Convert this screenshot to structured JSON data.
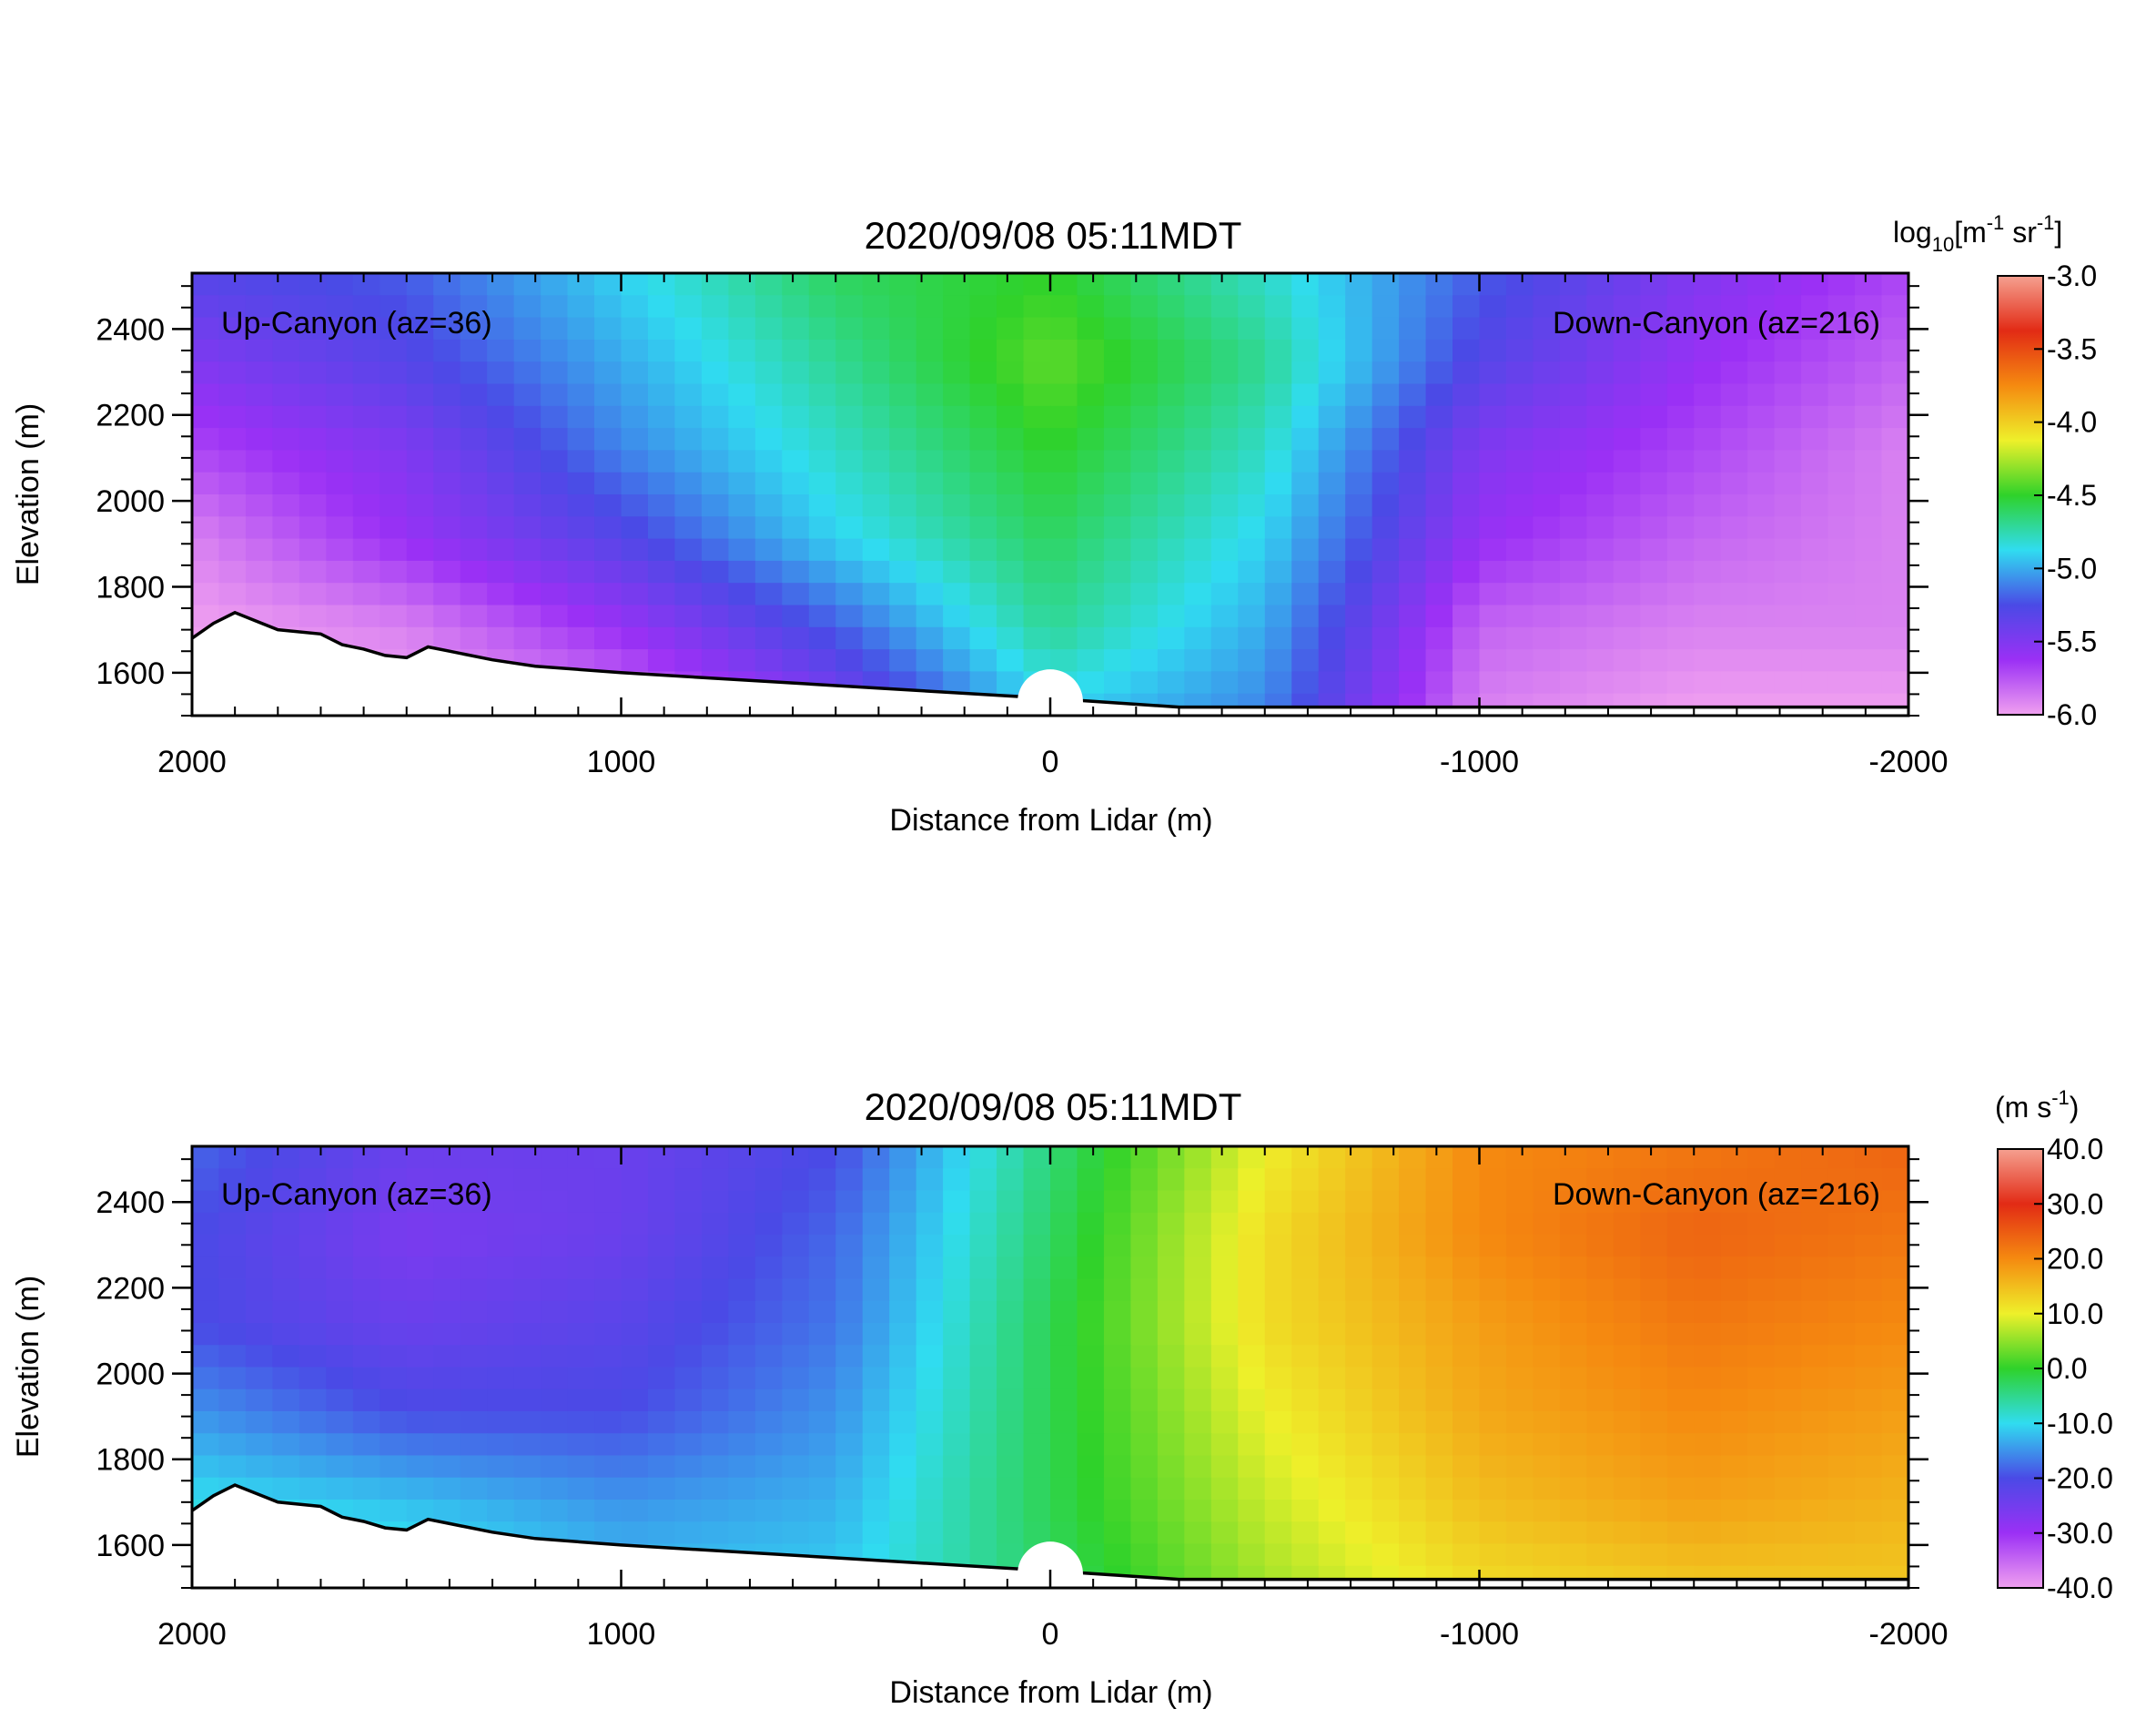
{
  "chart_data": [
    {
      "type": "heatmap",
      "title": "2020/09/08 05:11MDT",
      "xlabel": "Distance from Lidar (m)",
      "ylabel": "Elevation (m)",
      "x_ticks": [
        "2000",
        "1000",
        "0",
        "-1000",
        "-2000"
      ],
      "x_tick_values": [
        2000,
        1000,
        0,
        -1000,
        -2000
      ],
      "y_ticks": [
        "1600",
        "1800",
        "2000",
        "2200",
        "2400"
      ],
      "y_tick_values": [
        1600,
        1800,
        2000,
        2200,
        2400
      ],
      "xlim": [
        2000,
        -2000
      ],
      "ylim": [
        1500,
        2530
      ],
      "annotations": [
        "Up-Canyon (az=36)",
        "Down-Canyon (az=216)"
      ],
      "colorbar": {
        "units": "log10[m-1 sr-1]",
        "min": -6.0,
        "max": -3.0,
        "tick_labels": [
          "-3.0",
          "-3.5",
          "-4.0",
          "-4.5",
          "-5.0",
          "-5.5",
          "-6.0"
        ],
        "colors": [
          "#f0a0f0",
          "#9b30f5",
          "#4a4ae6",
          "#30dcf0",
          "#2fd22a",
          "#eef02a",
          "#f58a10",
          "#e22b15",
          "#f5a090"
        ]
      },
      "field": {
        "column_x": [
          2000,
          1500,
          1000,
          500,
          0,
          -500,
          -1000,
          -1500,
          -2000
        ],
        "row_elevation": [
          2500,
          2300,
          2100,
          1900,
          1700,
          1550
        ],
        "values": [
          [
            -5.3,
            -5.2,
            -4.9,
            -4.6,
            -4.5,
            -4.8,
            -5.2,
            -5.5,
            -5.7
          ],
          [
            -5.5,
            -5.3,
            -5.0,
            -4.7,
            -4.4,
            -4.7,
            -5.3,
            -5.6,
            -5.8
          ],
          [
            -5.7,
            -5.5,
            -5.1,
            -4.8,
            -4.5,
            -4.8,
            -5.5,
            -5.7,
            -5.9
          ],
          [
            -5.9,
            -5.6,
            -5.3,
            -4.9,
            -4.6,
            -4.9,
            -5.6,
            -5.8,
            -5.9
          ],
          [
            -6.0,
            -5.9,
            -5.6,
            -5.2,
            -4.7,
            -5.0,
            -5.8,
            -5.9,
            -5.9
          ],
          [
            -6.0,
            -6.0,
            -5.9,
            -5.5,
            -4.9,
            -5.1,
            -5.9,
            -6.0,
            -6.0
          ]
        ]
      },
      "terrain": {
        "x": [
          2000,
          1950,
          1900,
          1850,
          1800,
          1700,
          1650,
          1600,
          1550,
          1500,
          1450,
          1400,
          1300,
          1200,
          1000,
          500,
          0,
          -300,
          -2000
        ],
        "elevation": [
          1680,
          1715,
          1740,
          1720,
          1700,
          1690,
          1665,
          1655,
          1640,
          1635,
          1660,
          1650,
          1630,
          1615,
          1600,
          1570,
          1540,
          1520,
          1520
        ]
      }
    },
    {
      "type": "heatmap",
      "title": "2020/09/08 05:11MDT",
      "xlabel": "Distance from Lidar (m)",
      "ylabel": "Elevation (m)",
      "x_ticks": [
        "2000",
        "1000",
        "0",
        "-1000",
        "-2000"
      ],
      "x_tick_values": [
        2000,
        1000,
        0,
        -1000,
        -2000
      ],
      "y_ticks": [
        "1600",
        "1800",
        "2000",
        "2200",
        "2400"
      ],
      "y_tick_values": [
        1600,
        1800,
        2000,
        2200,
        2400
      ],
      "xlim": [
        2000,
        -2000
      ],
      "ylim": [
        1500,
        2530
      ],
      "annotations": [
        "Up-Canyon (az=36)",
        "Down-Canyon (az=216)"
      ],
      "colorbar": {
        "units": "m s-1",
        "min": -40.0,
        "max": 40.0,
        "tick_labels": [
          "40.0",
          "30.0",
          "20.0",
          "10.0",
          "0.0",
          "-10.0",
          "-20.0",
          "-30.0",
          "-40.0"
        ],
        "colors": [
          "#f0a0f0",
          "#9b30f5",
          "#4a4ae6",
          "#30dcf0",
          "#2fd22a",
          "#eef02a",
          "#f58a10",
          "#e22b15",
          "#f5a090"
        ]
      },
      "field": {
        "column_x": [
          2000,
          1500,
          1000,
          500,
          0,
          -500,
          -1000,
          -1500,
          -2000
        ],
        "row_elevation": [
          2500,
          2300,
          2100,
          1900,
          1700,
          1550
        ],
        "values": [
          [
            -18,
            -24,
            -24,
            -20,
            -4,
            10,
            20,
            22,
            24
          ],
          [
            -20,
            -26,
            -24,
            -18,
            -3,
            12,
            20,
            24,
            22
          ],
          [
            -20,
            -24,
            -22,
            -17,
            -2,
            12,
            18,
            22,
            20
          ],
          [
            -15,
            -20,
            -20,
            -15,
            -2,
            10,
            17,
            20,
            18
          ],
          [
            -10,
            -12,
            -15,
            -13,
            -2,
            8,
            15,
            18,
            16
          ],
          [
            -5,
            -8,
            -12,
            -11,
            -3,
            6,
            12,
            14,
            14
          ]
        ]
      },
      "terrain": {
        "x": [
          2000,
          1950,
          1900,
          1850,
          1800,
          1700,
          1650,
          1600,
          1550,
          1500,
          1450,
          1400,
          1300,
          1200,
          1000,
          500,
          0,
          -300,
          -2000
        ],
        "elevation": [
          1680,
          1715,
          1740,
          1720,
          1700,
          1690,
          1665,
          1655,
          1640,
          1635,
          1660,
          1650,
          1630,
          1615,
          1600,
          1570,
          1540,
          1520,
          1520
        ]
      }
    }
  ]
}
